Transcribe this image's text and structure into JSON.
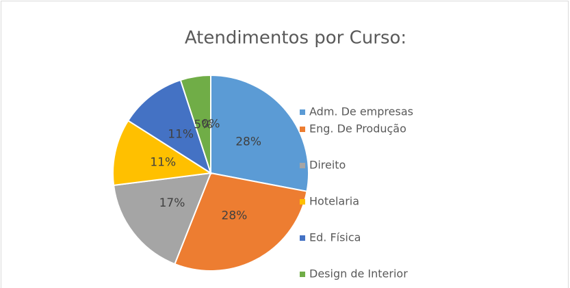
{
  "chart_data": {
    "type": "pie",
    "title": "Atendimentos por Curso:",
    "categories": [
      "Adm. De empresas",
      "Eng. De Produção",
      "Direito",
      "Hotelaria",
      "Ed. Física",
      "Design de Interior",
      null
    ],
    "values": [
      28,
      28,
      17,
      11,
      11,
      5,
      0
    ],
    "value_labels": [
      "28%",
      "28%",
      "17%",
      "11%",
      "11%",
      "5%",
      "0%"
    ],
    "colors": [
      "#5b9bd5",
      "#ed7d31",
      "#a5a5a5",
      "#ffc000",
      "#4472c4",
      "#70ad47",
      "#264478"
    ],
    "legend": "right"
  }
}
